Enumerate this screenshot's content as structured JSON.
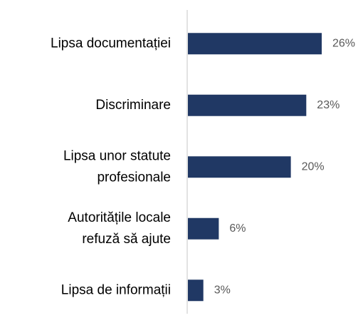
{
  "chart_data": {
    "type": "bar",
    "orientation": "horizontal",
    "categories": [
      "Lipsa documentației",
      "Discriminare",
      "Lipsa unor statute\nprofesionale",
      "Autoritățile locale\nrefuză să ajute",
      "Lipsa de informații"
    ],
    "values": [
      26,
      23,
      20,
      6,
      3
    ],
    "value_labels": [
      "26%",
      "23%",
      "20%",
      "6%",
      "3%"
    ],
    "color": "#203864"
  }
}
